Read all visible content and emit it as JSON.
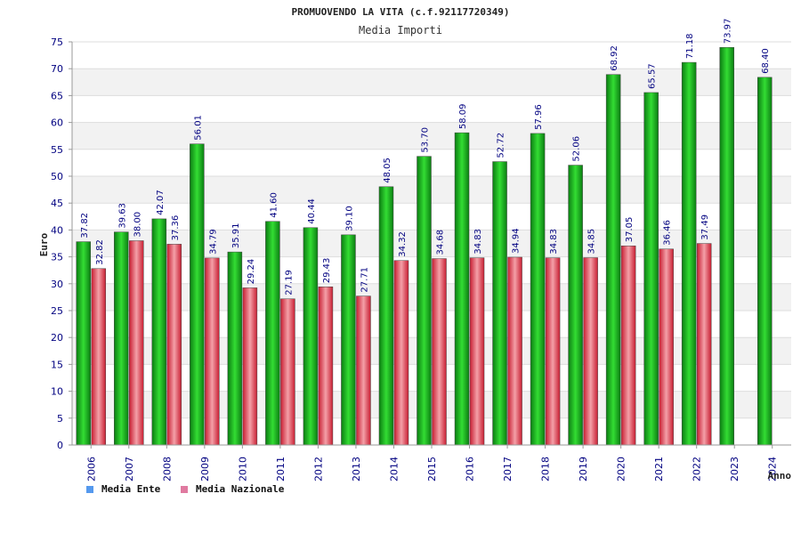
{
  "colors": {
    "ente_dark": "#0b7d12",
    "ente_light": "#33dd33",
    "nazionale_dark": "#c81e32",
    "nazionale_light": "#f4a0a8",
    "legend_ente": "#5599ee",
    "legend_nazionale": "#e07aa0",
    "band": "#f2f2f2",
    "tick_text": "#000080"
  },
  "chart_data": {
    "type": "bar",
    "title": "PROMUOVENDO LA VITA (c.f.92117720349)",
    "subtitle": "Media Importi",
    "xlabel": "Anno",
    "ylabel": "Euro",
    "ylim": [
      0,
      75
    ],
    "yticks": [
      "0",
      "5",
      "10",
      "15",
      "20",
      "25",
      "30",
      "35",
      "40",
      "45",
      "50",
      "55",
      "60",
      "65",
      "70",
      "75"
    ],
    "grid": "horizontal alternating bands",
    "legend_position": "bottom-left",
    "categories": [
      "2006",
      "2007",
      "2008",
      "2009",
      "2010",
      "2011",
      "2012",
      "2013",
      "2014",
      "2015",
      "2016",
      "2017",
      "2018",
      "2019",
      "2020",
      "2021",
      "2022",
      "2023",
      "2024"
    ],
    "series": [
      {
        "name": "Media Ente",
        "values": [
          37.82,
          39.63,
          42.07,
          56.01,
          35.91,
          41.6,
          40.44,
          39.1,
          48.05,
          53.7,
          58.09,
          52.72,
          57.96,
          52.06,
          68.92,
          65.57,
          71.18,
          73.97,
          68.4
        ],
        "labels": [
          "37.82",
          "39.63",
          "42.07",
          "56.01",
          "35.91",
          "41.60",
          "40.44",
          "39.10",
          "48.05",
          "53.70",
          "58.09",
          "52.72",
          "57.96",
          "52.06",
          "68.92",
          "65.57",
          "71.18",
          "73.97",
          "68.40"
        ]
      },
      {
        "name": "Media Nazionale",
        "values": [
          32.82,
          38.0,
          37.36,
          34.79,
          29.24,
          27.19,
          29.43,
          27.71,
          34.32,
          34.68,
          34.83,
          34.94,
          34.83,
          34.85,
          37.05,
          36.46,
          37.49,
          null,
          null
        ],
        "labels": [
          "32.82",
          "38.00",
          "37.36",
          "34.79",
          "29.24",
          "27.19",
          "29.43",
          "27.71",
          "34.32",
          "34.68",
          "34.83",
          "34.94",
          "34.83",
          "34.85",
          "37.05",
          "36.46",
          "37.49",
          "",
          ""
        ]
      }
    ]
  }
}
